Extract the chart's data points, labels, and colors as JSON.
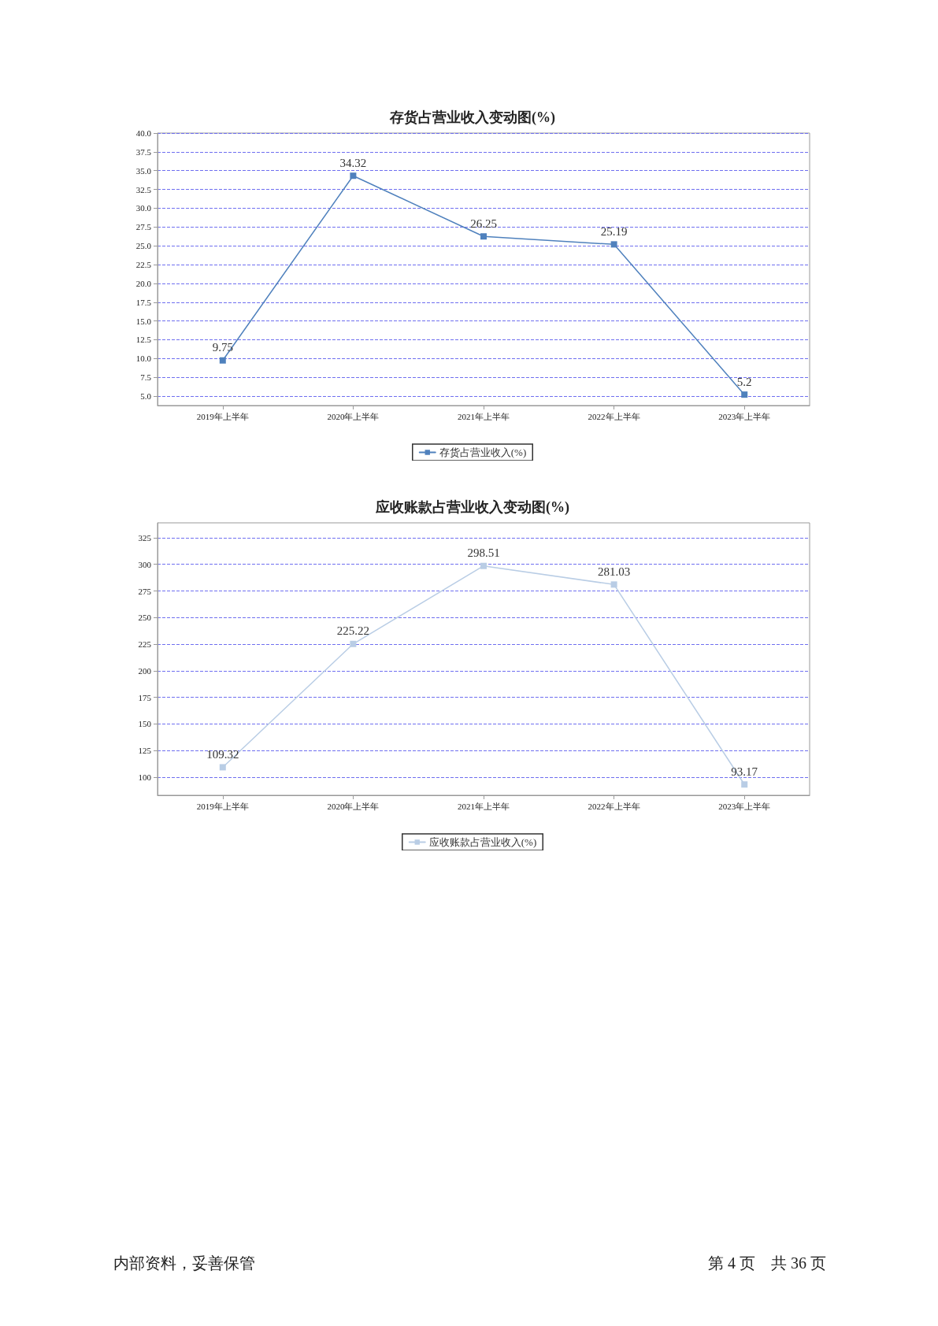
{
  "chart_data": [
    {
      "type": "line",
      "title": "存货占营业收入变动图(%)",
      "categories": [
        "2019年上半年",
        "2020年上半年",
        "2021年上半年",
        "2022年上半年",
        "2023年上半年"
      ],
      "series": [
        {
          "name": "存货占营业收入(%)",
          "color": "#4f81bd",
          "values": [
            9.75,
            34.32,
            26.25,
            25.19,
            5.2
          ]
        }
      ],
      "ylim": [
        3.75,
        40
      ],
      "yticks": [
        {
          "value": 5,
          "label": "5.0"
        },
        {
          "value": 7.5,
          "label": "7.5"
        },
        {
          "value": 10,
          "label": "10.0"
        },
        {
          "value": 12.5,
          "label": "12.5"
        },
        {
          "value": 15,
          "label": "15.0"
        },
        {
          "value": 17.5,
          "label": "17.5"
        },
        {
          "value": 20,
          "label": "20.0"
        },
        {
          "value": 22.5,
          "label": "22.5"
        },
        {
          "value": 25,
          "label": "25.0"
        },
        {
          "value": 27.5,
          "label": "27.5"
        },
        {
          "value": 30,
          "label": "30.0"
        },
        {
          "value": 32.5,
          "label": "32.5"
        },
        {
          "value": 35,
          "label": "35.0"
        },
        {
          "value": 37.5,
          "label": "37.5"
        },
        {
          "value": 40,
          "label": "40.0"
        }
      ],
      "grid": "y",
      "legend": "bottom",
      "marker": "square",
      "line_style": "solid",
      "data_labels": true
    },
    {
      "type": "line",
      "title": "应收账款占营业收入变动图(%)",
      "categories": [
        "2019年上半年",
        "2020年上半年",
        "2021年上半年",
        "2022年上半年",
        "2023年上半年"
      ],
      "series": [
        {
          "name": "应收账款占营业收入(%)",
          "color": "#b9cde5",
          "values": [
            109.32,
            225.22,
            298.51,
            281.03,
            93.17
          ]
        }
      ],
      "ylim": [
        83,
        339
      ],
      "yticks": [
        100,
        125,
        150,
        175,
        200,
        225,
        250,
        275,
        300,
        325
      ],
      "grid": "y",
      "legend": "bottom",
      "marker": "square",
      "line_style": "solid",
      "data_labels": true,
      "annotations": [
        "内部资料，妥善保管",
        "第 4 页　共 36 页"
      ]
    }
  ]
}
